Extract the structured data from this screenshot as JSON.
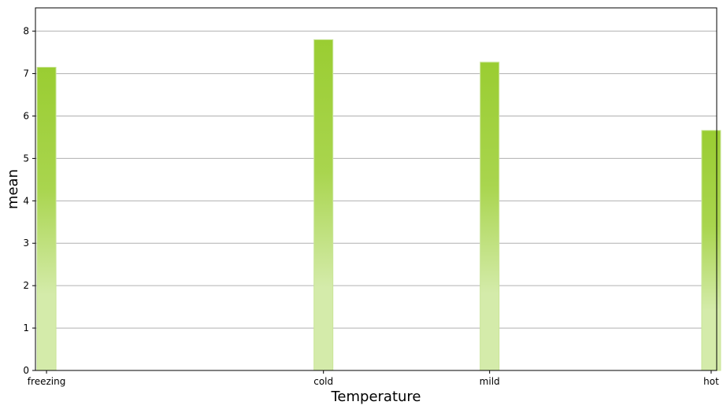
{
  "chart_data": {
    "type": "bar",
    "x_type": "numeric",
    "categories": [
      "freezing",
      "cold",
      "mild",
      "hot"
    ],
    "x_positions": [
      0,
      1,
      1.6,
      2.4
    ],
    "values": [
      7.15,
      7.8,
      7.27,
      5.66
    ],
    "title": "",
    "xlabel": "Temperature",
    "ylabel": "mean",
    "ylim": [
      0,
      8.55
    ],
    "yticks": [
      "0",
      "1",
      "2",
      "3",
      "4",
      "5",
      "6",
      "7",
      "8"
    ],
    "grid": "horizontal",
    "legend": "none",
    "colors": {
      "bar_top": "#9acd32",
      "bar_bottom": "#d4ebaa",
      "grid": "#b0b0b0",
      "axes": "#000000"
    }
  }
}
